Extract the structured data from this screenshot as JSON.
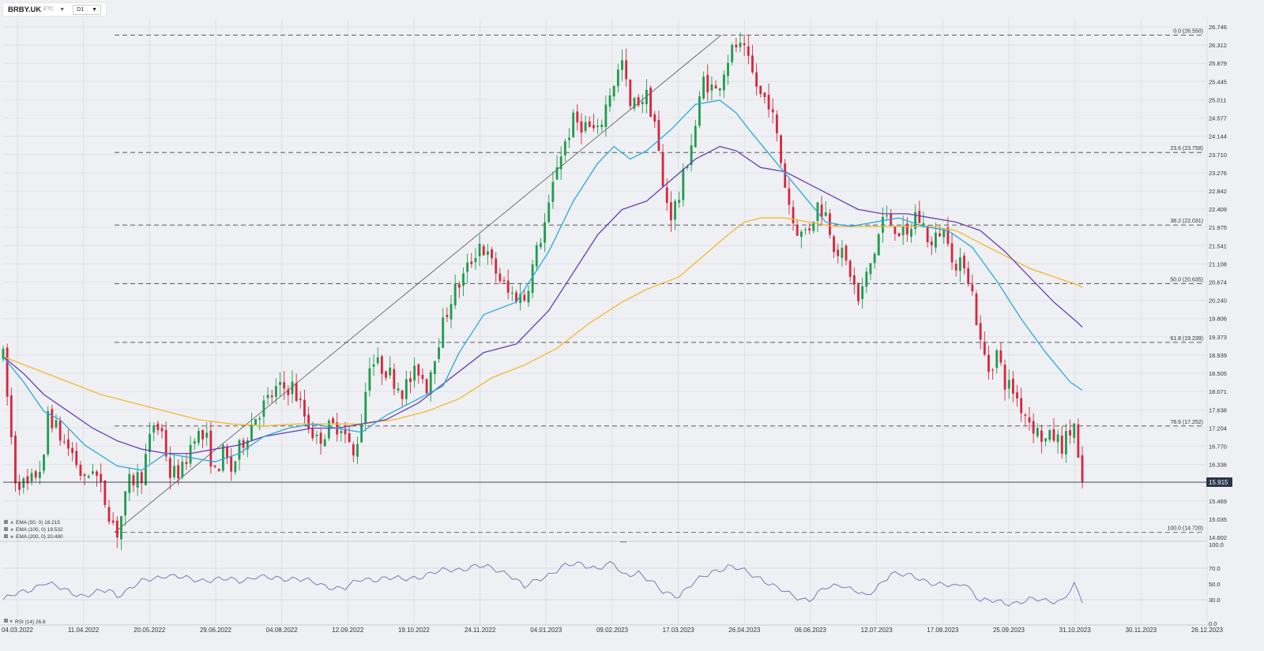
{
  "header": {
    "symbol": "BRBY.UK",
    "market": "ETC",
    "timeframe": "D1"
  },
  "colors": {
    "bull": "#1f9c4f",
    "bear": "#d7263d",
    "ema50": "#29a8e0",
    "ema100": "#6a3fb5",
    "ema200": "#f5b731",
    "rsi": "#6a6fb5",
    "fib": "#444444",
    "price_line": "#2a3446"
  },
  "chart_data": {
    "type": "candlestick",
    "symbol": "BRBY.UK",
    "price_axis": {
      "min": 14.602,
      "max": 26.746,
      "ticks": [
        "26.746",
        "26.312",
        "25.879",
        "25.445",
        "25.011",
        "24.577",
        "24.144",
        "23.710",
        "23.276",
        "22.842",
        "22.409",
        "21.975",
        "21.541",
        "21.108",
        "20.674",
        "20.240",
        "19.806",
        "19.373",
        "18.939",
        "18.505",
        "18.071",
        "17.638",
        "17.204",
        "16.770",
        "16.336",
        "15.469",
        "15.035",
        "14.602"
      ]
    },
    "current_price": "15.915",
    "date_axis": [
      "04.03.2022",
      "11.04.2022",
      "20.05.2022",
      "29.06.2022",
      "04.08.2022",
      "12.09.2022",
      "19.10.2022",
      "24.11.2022",
      "04.01.2023",
      "09.02.2023",
      "17.03.2023",
      "26.04.2023",
      "06.06.2023",
      "12.07.2023",
      "17.08.2023",
      "25.09.2023",
      "31.10.2023",
      "30.11.2023",
      "26.12.2023"
    ],
    "fibonacci": [
      {
        "label": "0.0 (26.550)",
        "value": 26.55
      },
      {
        "label": "23.6 (23.758)",
        "value": 23.758
      },
      {
        "label": "38.2 (22.031)",
        "value": 22.031
      },
      {
        "label": "50.0 (20.635)",
        "value": 20.635
      },
      {
        "label": "61.8 (19.239)",
        "value": 19.239
      },
      {
        "label": "78.6 (17.252)",
        "value": 17.252
      },
      {
        "label": "100.0 (14.720)",
        "value": 14.72
      }
    ],
    "trendline": {
      "from": {
        "date": "2022-05-05",
        "price": 14.72
      },
      "to": {
        "date": "2023-04-13",
        "price": 26.55
      }
    },
    "legend": [
      {
        "text": "EMA (50, 0) 18.215",
        "color": "#29a8e0"
      },
      {
        "text": "EMA (100, 0) 19.532",
        "color": "#6a3fb5"
      },
      {
        "text": "EMA (200, 0) 20.490",
        "color": "#f5b731"
      }
    ],
    "ema50": [
      [
        0,
        18.9
      ],
      [
        5,
        18.3
      ],
      [
        10,
        17.6
      ],
      [
        14,
        17.4
      ],
      [
        20,
        16.8
      ],
      [
        28,
        16.3
      ],
      [
        34,
        16.2
      ],
      [
        40,
        16.6
      ],
      [
        46,
        16.5
      ],
      [
        52,
        16.4
      ],
      [
        58,
        16.6
      ],
      [
        64,
        17.0
      ],
      [
        70,
        17.2
      ],
      [
        76,
        17.3
      ],
      [
        82,
        17.2
      ],
      [
        88,
        17.1
      ],
      [
        94,
        17.5
      ],
      [
        102,
        17.9
      ],
      [
        108,
        18.2
      ],
      [
        112,
        19.0
      ],
      [
        118,
        19.9
      ],
      [
        126,
        20.2
      ],
      [
        134,
        21.4
      ],
      [
        140,
        22.6
      ],
      [
        146,
        23.5
      ],
      [
        150,
        23.9
      ],
      [
        154,
        23.6
      ],
      [
        158,
        23.8
      ],
      [
        164,
        24.3
      ],
      [
        170,
        24.9
      ],
      [
        176,
        25.0
      ],
      [
        180,
        24.7
      ],
      [
        184,
        24.2
      ],
      [
        190,
        23.5
      ],
      [
        196,
        22.8
      ],
      [
        202,
        22.1
      ],
      [
        208,
        22.0
      ],
      [
        214,
        22.1
      ],
      [
        220,
        22.2
      ],
      [
        226,
        22.0
      ],
      [
        232,
        21.9
      ],
      [
        238,
        21.5
      ],
      [
        244,
        20.7
      ],
      [
        250,
        19.8
      ],
      [
        256,
        19.0
      ],
      [
        262,
        18.3
      ],
      [
        265,
        18.1
      ]
    ],
    "ema100": [
      [
        0,
        18.9
      ],
      [
        5,
        18.5
      ],
      [
        10,
        18.0
      ],
      [
        16,
        17.6
      ],
      [
        22,
        17.2
      ],
      [
        28,
        16.9
      ],
      [
        34,
        16.7
      ],
      [
        40,
        16.6
      ],
      [
        46,
        16.6
      ],
      [
        52,
        16.7
      ],
      [
        58,
        16.8
      ],
      [
        64,
        17.0
      ],
      [
        70,
        17.1
      ],
      [
        76,
        17.2
      ],
      [
        82,
        17.2
      ],
      [
        88,
        17.3
      ],
      [
        94,
        17.4
      ],
      [
        102,
        17.8
      ],
      [
        110,
        18.4
      ],
      [
        118,
        19.0
      ],
      [
        126,
        19.2
      ],
      [
        134,
        20.0
      ],
      [
        140,
        20.9
      ],
      [
        146,
        21.8
      ],
      [
        152,
        22.4
      ],
      [
        158,
        22.6
      ],
      [
        164,
        23.1
      ],
      [
        170,
        23.6
      ],
      [
        176,
        23.9
      ],
      [
        180,
        23.8
      ],
      [
        186,
        23.4
      ],
      [
        192,
        23.3
      ],
      [
        198,
        23.0
      ],
      [
        204,
        22.7
      ],
      [
        210,
        22.4
      ],
      [
        216,
        22.3
      ],
      [
        222,
        22.3
      ],
      [
        228,
        22.2
      ],
      [
        234,
        22.1
      ],
      [
        240,
        21.9
      ],
      [
        246,
        21.4
      ],
      [
        252,
        20.8
      ],
      [
        258,
        20.2
      ],
      [
        264,
        19.7
      ],
      [
        265,
        19.6
      ]
    ],
    "ema200": [
      [
        0,
        18.9
      ],
      [
        8,
        18.6
      ],
      [
        16,
        18.3
      ],
      [
        24,
        18.0
      ],
      [
        32,
        17.8
      ],
      [
        40,
        17.6
      ],
      [
        48,
        17.4
      ],
      [
        56,
        17.3
      ],
      [
        64,
        17.25
      ],
      [
        72,
        17.3
      ],
      [
        80,
        17.3
      ],
      [
        88,
        17.3
      ],
      [
        96,
        17.4
      ],
      [
        104,
        17.6
      ],
      [
        112,
        17.9
      ],
      [
        120,
        18.4
      ],
      [
        128,
        18.7
      ],
      [
        136,
        19.1
      ],
      [
        144,
        19.7
      ],
      [
        152,
        20.2
      ],
      [
        158,
        20.5
      ],
      [
        166,
        20.8
      ],
      [
        172,
        21.3
      ],
      [
        178,
        21.8
      ],
      [
        182,
        22.1
      ],
      [
        186,
        22.2
      ],
      [
        192,
        22.2
      ],
      [
        198,
        22.1
      ],
      [
        204,
        22.0
      ],
      [
        210,
        22.0
      ],
      [
        216,
        22.0
      ],
      [
        222,
        22.0
      ],
      [
        228,
        22.0
      ],
      [
        234,
        21.9
      ],
      [
        240,
        21.6
      ],
      [
        246,
        21.3
      ],
      [
        252,
        21.0
      ],
      [
        258,
        20.8
      ],
      [
        264,
        20.6
      ],
      [
        265,
        20.55
      ]
    ],
    "candle_path": [
      [
        0,
        18.9
      ],
      [
        3,
        16.0
      ],
      [
        6,
        15.8
      ],
      [
        10,
        16.4
      ],
      [
        11,
        17.6
      ],
      [
        14,
        17.0
      ],
      [
        17,
        16.6
      ],
      [
        20,
        15.9
      ],
      [
        22,
        16.3
      ],
      [
        26,
        15.2
      ],
      [
        28,
        14.72
      ],
      [
        31,
        15.9
      ],
      [
        34,
        16.1
      ],
      [
        37,
        17.3
      ],
      [
        39,
        17.1
      ],
      [
        41,
        16.1
      ],
      [
        44,
        16.2
      ],
      [
        47,
        17.1
      ],
      [
        50,
        16.9
      ],
      [
        52,
        16.1
      ],
      [
        54,
        16.6
      ],
      [
        56,
        16.2
      ],
      [
        58,
        16.7
      ],
      [
        62,
        17.5
      ],
      [
        67,
        18.1
      ],
      [
        71,
        18.2
      ],
      [
        74,
        17.5
      ],
      [
        77,
        16.9
      ],
      [
        80,
        17.2
      ],
      [
        83,
        17.3
      ],
      [
        86,
        16.5
      ],
      [
        88,
        17.4
      ],
      [
        90,
        18.8
      ],
      [
        94,
        18.6
      ],
      [
        98,
        18.1
      ],
      [
        102,
        18.6
      ],
      [
        104,
        18.2
      ],
      [
        106,
        19.0
      ],
      [
        110,
        20.3
      ],
      [
        113,
        20.8
      ],
      [
        117,
        21.6
      ],
      [
        120,
        21.1
      ],
      [
        124,
        20.4
      ],
      [
        128,
        20.3
      ],
      [
        131,
        21.4
      ],
      [
        134,
        22.4
      ],
      [
        136,
        23.5
      ],
      [
        140,
        24.5
      ],
      [
        143,
        24.4
      ],
      [
        146,
        24.2
      ],
      [
        149,
        25.2
      ],
      [
        152,
        25.9
      ],
      [
        154,
        24.8
      ],
      [
        156,
        25.0
      ],
      [
        158,
        25.1
      ],
      [
        160,
        24.5
      ],
      [
        162,
        22.9
      ],
      [
        164,
        22.3
      ],
      [
        166,
        22.7
      ],
      [
        168,
        23.6
      ],
      [
        170,
        24.4
      ],
      [
        172,
        25.5
      ],
      [
        175,
        25.2
      ],
      [
        178,
        26.0
      ],
      [
        180,
        26.3
      ],
      [
        182,
        26.1
      ],
      [
        184,
        25.6
      ],
      [
        186,
        25.1
      ],
      [
        188,
        25.0
      ],
      [
        190,
        24.1
      ],
      [
        192,
        23.0
      ],
      [
        194,
        22.1
      ],
      [
        196,
        21.8
      ],
      [
        198,
        22.0
      ],
      [
        200,
        22.5
      ],
      [
        202,
        22.3
      ],
      [
        204,
        21.6
      ],
      [
        206,
        21.3
      ],
      [
        208,
        20.9
      ],
      [
        210,
        20.2
      ],
      [
        212,
        20.8
      ],
      [
        214,
        21.4
      ],
      [
        216,
        22.2
      ],
      [
        218,
        22.1
      ],
      [
        220,
        21.9
      ],
      [
        222,
        21.7
      ],
      [
        224,
        22.3
      ],
      [
        226,
        22.0
      ],
      [
        228,
        21.5
      ],
      [
        230,
        21.9
      ],
      [
        232,
        21.8
      ],
      [
        234,
        20.9
      ],
      [
        236,
        21.2
      ],
      [
        238,
        20.4
      ],
      [
        240,
        19.2
      ],
      [
        242,
        18.6
      ],
      [
        244,
        19.0
      ],
      [
        246,
        18.3
      ],
      [
        248,
        18.1
      ],
      [
        250,
        17.7
      ],
      [
        252,
        17.4
      ],
      [
        254,
        17.1
      ],
      [
        256,
        16.9
      ],
      [
        258,
        17.0
      ],
      [
        260,
        16.8
      ],
      [
        262,
        17.1
      ],
      [
        263,
        17.3
      ],
      [
        264,
        16.4
      ],
      [
        265,
        15.9
      ]
    ],
    "rsi": {
      "period": 14,
      "value": 26.8,
      "label": "RSI (14) 26.8",
      "ticks": [
        "100.0",
        "70.0",
        "50.0",
        "30.0",
        "0.0"
      ],
      "path": [
        [
          0,
          30
        ],
        [
          6,
          42
        ],
        [
          10,
          52
        ],
        [
          14,
          44
        ],
        [
          20,
          35
        ],
        [
          26,
          42
        ],
        [
          28,
          36
        ],
        [
          34,
          52
        ],
        [
          40,
          62
        ],
        [
          46,
          55
        ],
        [
          52,
          56
        ],
        [
          58,
          54
        ],
        [
          62,
          60
        ],
        [
          66,
          56
        ],
        [
          72,
          58
        ],
        [
          78,
          48
        ],
        [
          84,
          45
        ],
        [
          88,
          55
        ],
        [
          94,
          58
        ],
        [
          98,
          55
        ],
        [
          104,
          62
        ],
        [
          110,
          68
        ],
        [
          116,
          72
        ],
        [
          120,
          70
        ],
        [
          124,
          64
        ],
        [
          128,
          45
        ],
        [
          132,
          58
        ],
        [
          138,
          72
        ],
        [
          142,
          76
        ],
        [
          146,
          70
        ],
        [
          150,
          75
        ],
        [
          152,
          62
        ],
        [
          156,
          65
        ],
        [
          158,
          56
        ],
        [
          162,
          40
        ],
        [
          166,
          36
        ],
        [
          170,
          52
        ],
        [
          174,
          66
        ],
        [
          178,
          72
        ],
        [
          182,
          66
        ],
        [
          186,
          58
        ],
        [
          190,
          44
        ],
        [
          194,
          35
        ],
        [
          198,
          30
        ],
        [
          202,
          44
        ],
        [
          206,
          50
        ],
        [
          210,
          40
        ],
        [
          212,
          32
        ],
        [
          214,
          42
        ],
        [
          218,
          65
        ],
        [
          222,
          60
        ],
        [
          226,
          55
        ],
        [
          230,
          50
        ],
        [
          234,
          45
        ],
        [
          236,
          52
        ],
        [
          240,
          30
        ],
        [
          246,
          25
        ],
        [
          252,
          30
        ],
        [
          256,
          28
        ],
        [
          260,
          30
        ],
        [
          263,
          48
        ],
        [
          265,
          27
        ]
      ]
    }
  }
}
